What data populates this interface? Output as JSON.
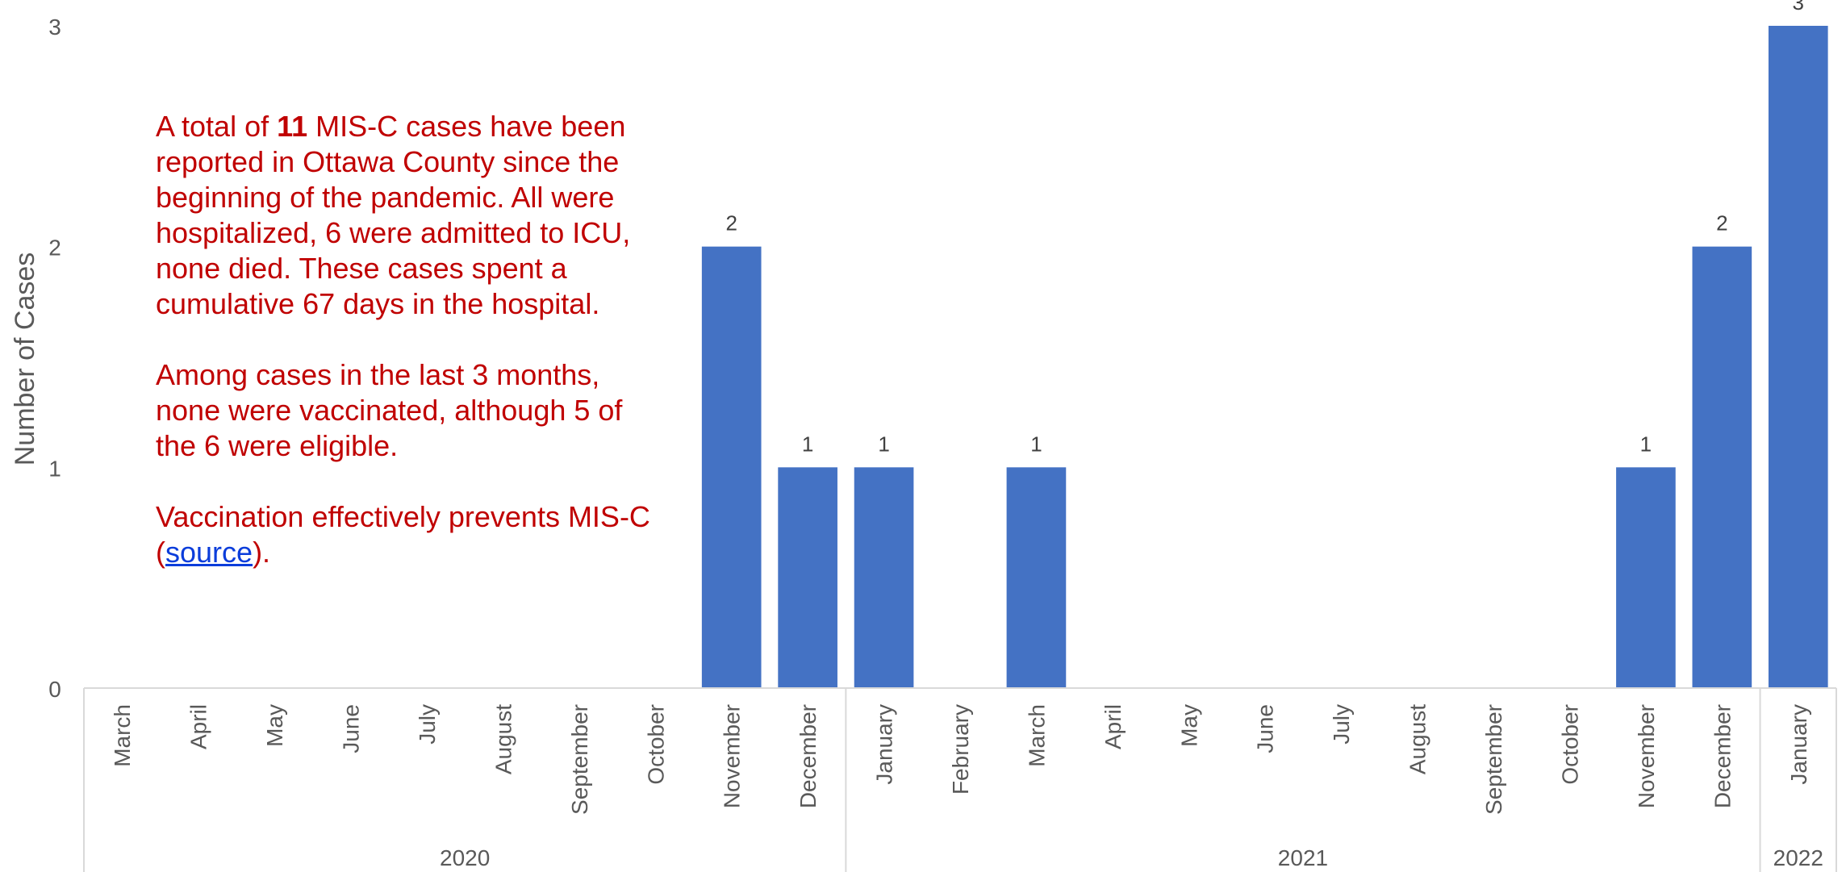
{
  "chart_data": {
    "type": "bar",
    "ylabel": "Number of Cases",
    "ylim": [
      0,
      3
    ],
    "yticks": [
      "0",
      "1",
      "2",
      "3"
    ],
    "bar_color": "#4472c4",
    "categories": [
      "March",
      "April",
      "May",
      "June",
      "July",
      "August",
      "September",
      "October",
      "November",
      "December",
      "January",
      "February",
      "March",
      "April",
      "May",
      "June",
      "July",
      "August",
      "September",
      "October",
      "November",
      "December",
      "January"
    ],
    "values": [
      0,
      0,
      0,
      0,
      0,
      0,
      0,
      0,
      2,
      1,
      1,
      0,
      1,
      0,
      0,
      0,
      0,
      0,
      0,
      0,
      1,
      2,
      3
    ],
    "year_groups": [
      {
        "label": "2020",
        "start": 0,
        "end": 9
      },
      {
        "label": "2021",
        "start": 10,
        "end": 21
      },
      {
        "label": "2022",
        "start": 22,
        "end": 22
      }
    ],
    "data_labels": [
      "",
      "",
      "",
      "",
      "",
      "",
      "",
      "",
      "2",
      "1",
      "1",
      "",
      "1",
      "",
      "",
      "",
      "",
      "",
      "",
      "",
      "1",
      "2",
      "3"
    ]
  },
  "annotation": {
    "p1_pre": "A total of ",
    "p1_bold": "11",
    "p1_post": " MIS-C cases have been reported in Ottawa County since the beginning of the pandemic. All were hospitalized, 6 were admitted to ICU, none died. These cases spent a cumulative 67 days in the hospital.",
    "p2": "Among cases in the last 3 months, none were vaccinated, although 5 of the 6 were eligible.",
    "p3_pre": "Vaccination effectively prevents MIS-C (",
    "p3_link": "source",
    "p3_post": ").",
    "text_color": "#c00000",
    "link_color": "#0b3ddb"
  }
}
